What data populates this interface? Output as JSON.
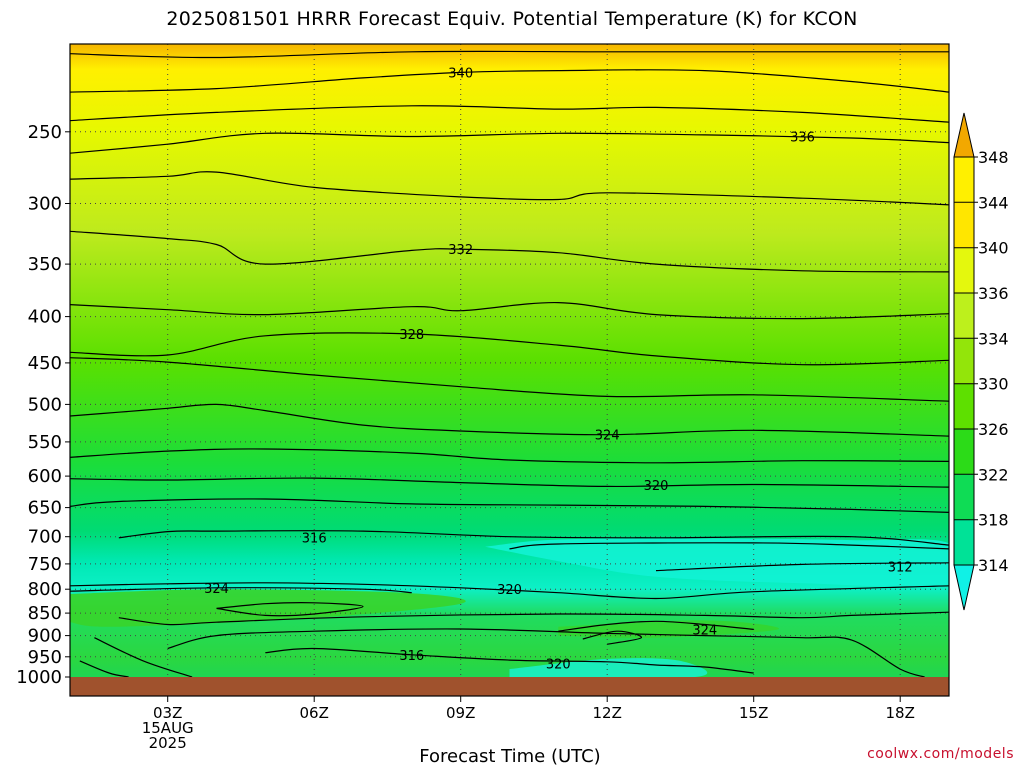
{
  "title": "2025081501 HRRR Forecast Equiv. Potential Temperature (K) for KCON",
  "credit": "coolwx.com/models",
  "chart_data": {
    "type": "heatmap",
    "xlabel": "Forecast Time (UTC)",
    "x_unit": "forecast hour",
    "xlim": [
      1,
      19
    ],
    "x_ticks": [
      {
        "x": 3,
        "lines": [
          "03Z",
          "15AUG",
          "2025"
        ]
      },
      {
        "x": 6,
        "lines": [
          "06Z"
        ]
      },
      {
        "x": 9,
        "lines": [
          "09Z"
        ]
      },
      {
        "x": 12,
        "lines": [
          "12Z"
        ]
      },
      {
        "x": 15,
        "lines": [
          "15Z"
        ]
      },
      {
        "x": 18,
        "lines": [
          "18Z"
        ]
      }
    ],
    "ylabel": "",
    "y_scale": "log-pressure (hPa), inverted",
    "ylim": [
      1000,
      200
    ],
    "y_ticks": [
      250,
      300,
      350,
      400,
      450,
      500,
      550,
      600,
      650,
      700,
      750,
      800,
      850,
      900,
      950,
      1000
    ],
    "grid": true,
    "colorbar": {
      "levels": [
        314,
        318,
        322,
        326,
        330,
        334,
        336,
        340,
        344,
        348
      ],
      "extend": "both"
    },
    "contours": [
      {
        "value": 344,
        "pts": [
          [
            1,
            205
          ],
          [
            4,
            207
          ],
          [
            8,
            204
          ],
          [
            12,
            204
          ],
          [
            16,
            204
          ],
          [
            19,
            204
          ]
        ]
      },
      {
        "value": 340,
        "label_at": [
          9,
          215
        ],
        "pts": [
          [
            1,
            226
          ],
          [
            4,
            224
          ],
          [
            7,
            218
          ],
          [
            9,
            215
          ],
          [
            11,
            214
          ],
          [
            14,
            214
          ],
          [
            17,
            220
          ],
          [
            19,
            226
          ]
        ]
      },
      {
        "value": 338,
        "pts": [
          [
            1,
            243
          ],
          [
            4,
            238
          ],
          [
            8,
            234
          ],
          [
            11,
            236
          ],
          [
            13,
            235
          ],
          [
            16,
            238
          ],
          [
            19,
            244
          ]
        ]
      },
      {
        "value": 336,
        "label_at": [
          16,
          253
        ],
        "pts": [
          [
            1,
            264
          ],
          [
            3,
            258
          ],
          [
            5,
            251
          ],
          [
            8,
            253
          ],
          [
            11,
            251
          ],
          [
            14,
            252
          ],
          [
            17,
            254
          ],
          [
            19,
            257
          ]
        ]
      },
      {
        "value": 334,
        "pts": [
          [
            1,
            282
          ],
          [
            3,
            280
          ],
          [
            4,
            277
          ],
          [
            6,
            288
          ],
          [
            9,
            295
          ],
          [
            11,
            297
          ],
          [
            12,
            292
          ],
          [
            16,
            296
          ],
          [
            19,
            301
          ]
        ]
      },
      {
        "value": 332,
        "label_at": [
          9,
          337
        ],
        "pts": [
          [
            1,
            322
          ],
          [
            3,
            328
          ],
          [
            4,
            333
          ],
          [
            5,
            350
          ],
          [
            8,
            338
          ],
          [
            9,
            337
          ],
          [
            11,
            340
          ],
          [
            13,
            350
          ],
          [
            16,
            356
          ],
          [
            19,
            357
          ]
        ]
      },
      {
        "value": 330,
        "pts": [
          [
            1,
            388
          ],
          [
            3,
            393
          ],
          [
            5,
            398
          ],
          [
            8,
            390
          ],
          [
            9,
            394
          ],
          [
            11,
            386
          ],
          [
            13,
            398
          ],
          [
            16,
            402
          ],
          [
            19,
            397
          ]
        ]
      },
      {
        "value": 328,
        "label_at": [
          8,
          418
        ],
        "pts": [
          [
            1,
            438
          ],
          [
            3,
            441
          ],
          [
            5,
            420
          ],
          [
            8,
            418
          ],
          [
            11,
            430
          ],
          [
            13,
            442
          ],
          [
            16,
            452
          ],
          [
            19,
            447
          ]
        ]
      },
      {
        "value": 326,
        "pts": [
          [
            1,
            444
          ],
          [
            3,
            449
          ],
          [
            6,
            464
          ],
          [
            9,
            478
          ],
          [
            12,
            490
          ],
          [
            15,
            488
          ],
          [
            19,
            496
          ]
        ]
      },
      {
        "value": 324,
        "label_at": [
          12,
          540
        ],
        "pts": [
          [
            1,
            515
          ],
          [
            2,
            510
          ],
          [
            3,
            505
          ],
          [
            4,
            500
          ],
          [
            5,
            508
          ],
          [
            7,
            527
          ],
          [
            9,
            535
          ],
          [
            12,
            540
          ],
          [
            15,
            534
          ],
          [
            19,
            542
          ]
        ]
      },
      {
        "value": 322,
        "pts": [
          [
            1,
            572
          ],
          [
            3,
            563
          ],
          [
            5,
            560
          ],
          [
            8,
            566
          ],
          [
            10,
            576
          ],
          [
            13,
            580
          ],
          [
            16,
            577
          ],
          [
            19,
            578
          ]
        ]
      },
      {
        "value": 320,
        "label_at": [
          13,
          614
        ],
        "pts": [
          [
            1,
            604
          ],
          [
            3,
            606
          ],
          [
            6,
            603
          ],
          [
            9,
            610
          ],
          [
            12,
            616
          ],
          [
            15,
            613
          ],
          [
            19,
            617
          ]
        ]
      },
      {
        "value": 318,
        "pts": [
          [
            1,
            648
          ],
          [
            2,
            640
          ],
          [
            5,
            636
          ],
          [
            8,
            644
          ],
          [
            11,
            646
          ],
          [
            14,
            648
          ],
          [
            17,
            653
          ],
          [
            19,
            658
          ]
        ]
      },
      {
        "value": 316,
        "label_at": [
          6,
          701
        ],
        "pts": [
          [
            2,
            702
          ],
          [
            3,
            691
          ],
          [
            4,
            690
          ],
          [
            7,
            690
          ],
          [
            10,
            700
          ],
          [
            13,
            702
          ],
          [
            17,
            700
          ],
          [
            19,
            715
          ]
        ]
      },
      {
        "value": 314,
        "pts": [
          [
            10,
            722
          ],
          [
            11,
            713
          ],
          [
            15,
            711
          ],
          [
            17,
            715
          ],
          [
            19,
            722
          ]
        ]
      },
      {
        "value": 312,
        "label_at": [
          18,
          755
        ],
        "pts": [
          [
            13,
            763
          ],
          [
            16,
            751
          ],
          [
            19,
            748
          ]
        ]
      },
      {
        "value": 320,
        "label_at": [
          10,
          800
        ],
        "pts": [
          [
            1,
            793
          ],
          [
            3,
            789
          ],
          [
            5,
            787
          ],
          [
            7,
            790
          ],
          [
            9,
            797
          ],
          [
            11,
            807
          ],
          [
            13,
            819
          ],
          [
            15,
            805
          ],
          [
            19,
            793
          ]
        ]
      },
      {
        "value": 324,
        "label_at": [
          4,
          797
        ],
        "pts": [
          [
            1,
            804
          ],
          [
            4,
            797
          ],
          [
            7,
            800
          ],
          [
            8,
            807
          ]
        ]
      },
      {
        "value": 326,
        "pts": [
          [
            4,
            840
          ],
          [
            5,
            830
          ],
          [
            6,
            828
          ],
          [
            7,
            836
          ],
          [
            6,
            852
          ],
          [
            5,
            855
          ],
          [
            4,
            840
          ]
        ]
      },
      {
        "value": 324,
        "label_at": [
          14,
          886
        ],
        "pts": [
          [
            11,
            890
          ],
          [
            12,
            875
          ],
          [
            13,
            868
          ],
          [
            14,
            875
          ],
          [
            15,
            886
          ]
        ]
      },
      {
        "value": 326,
        "pts": [
          [
            11.5,
            908
          ],
          [
            12.2,
            890
          ],
          [
            12.7,
            905
          ],
          [
            12,
            920
          ]
        ]
      },
      {
        "value": 316,
        "label_at": [
          8,
          945
        ],
        "pts": [
          [
            5,
            940
          ],
          [
            6,
            930
          ],
          [
            8,
            945
          ],
          [
            10,
            958
          ],
          [
            12,
            962
          ],
          [
            13,
            970
          ],
          [
            14,
            975
          ],
          [
            15,
            990
          ]
        ]
      },
      {
        "value": 320,
        "label_at": [
          11,
          966
        ],
        "pts": [
          [
            3,
            930
          ],
          [
            4,
            900
          ],
          [
            6,
            890
          ],
          [
            9,
            885
          ],
          [
            12,
            895
          ],
          [
            14,
            900
          ],
          [
            16,
            905
          ],
          [
            17,
            910
          ],
          [
            18,
            980
          ],
          [
            18.5,
            1000
          ]
        ]
      },
      {
        "value": 322,
        "pts": [
          [
            2,
            860
          ],
          [
            3,
            875
          ],
          [
            4,
            870
          ],
          [
            7,
            858
          ],
          [
            11,
            852
          ],
          [
            14,
            855
          ],
          [
            16,
            860
          ],
          [
            17,
            855
          ],
          [
            19,
            848
          ]
        ]
      },
      {
        "value": 318,
        "pts": [
          [
            1.5,
            905
          ],
          [
            2.5,
            960
          ],
          [
            3.5,
            1000
          ]
        ]
      },
      {
        "value": 322,
        "pts": [
          [
            1.2,
            960
          ],
          [
            1.8,
            990
          ],
          [
            2.2,
            1000
          ]
        ]
      }
    ]
  }
}
